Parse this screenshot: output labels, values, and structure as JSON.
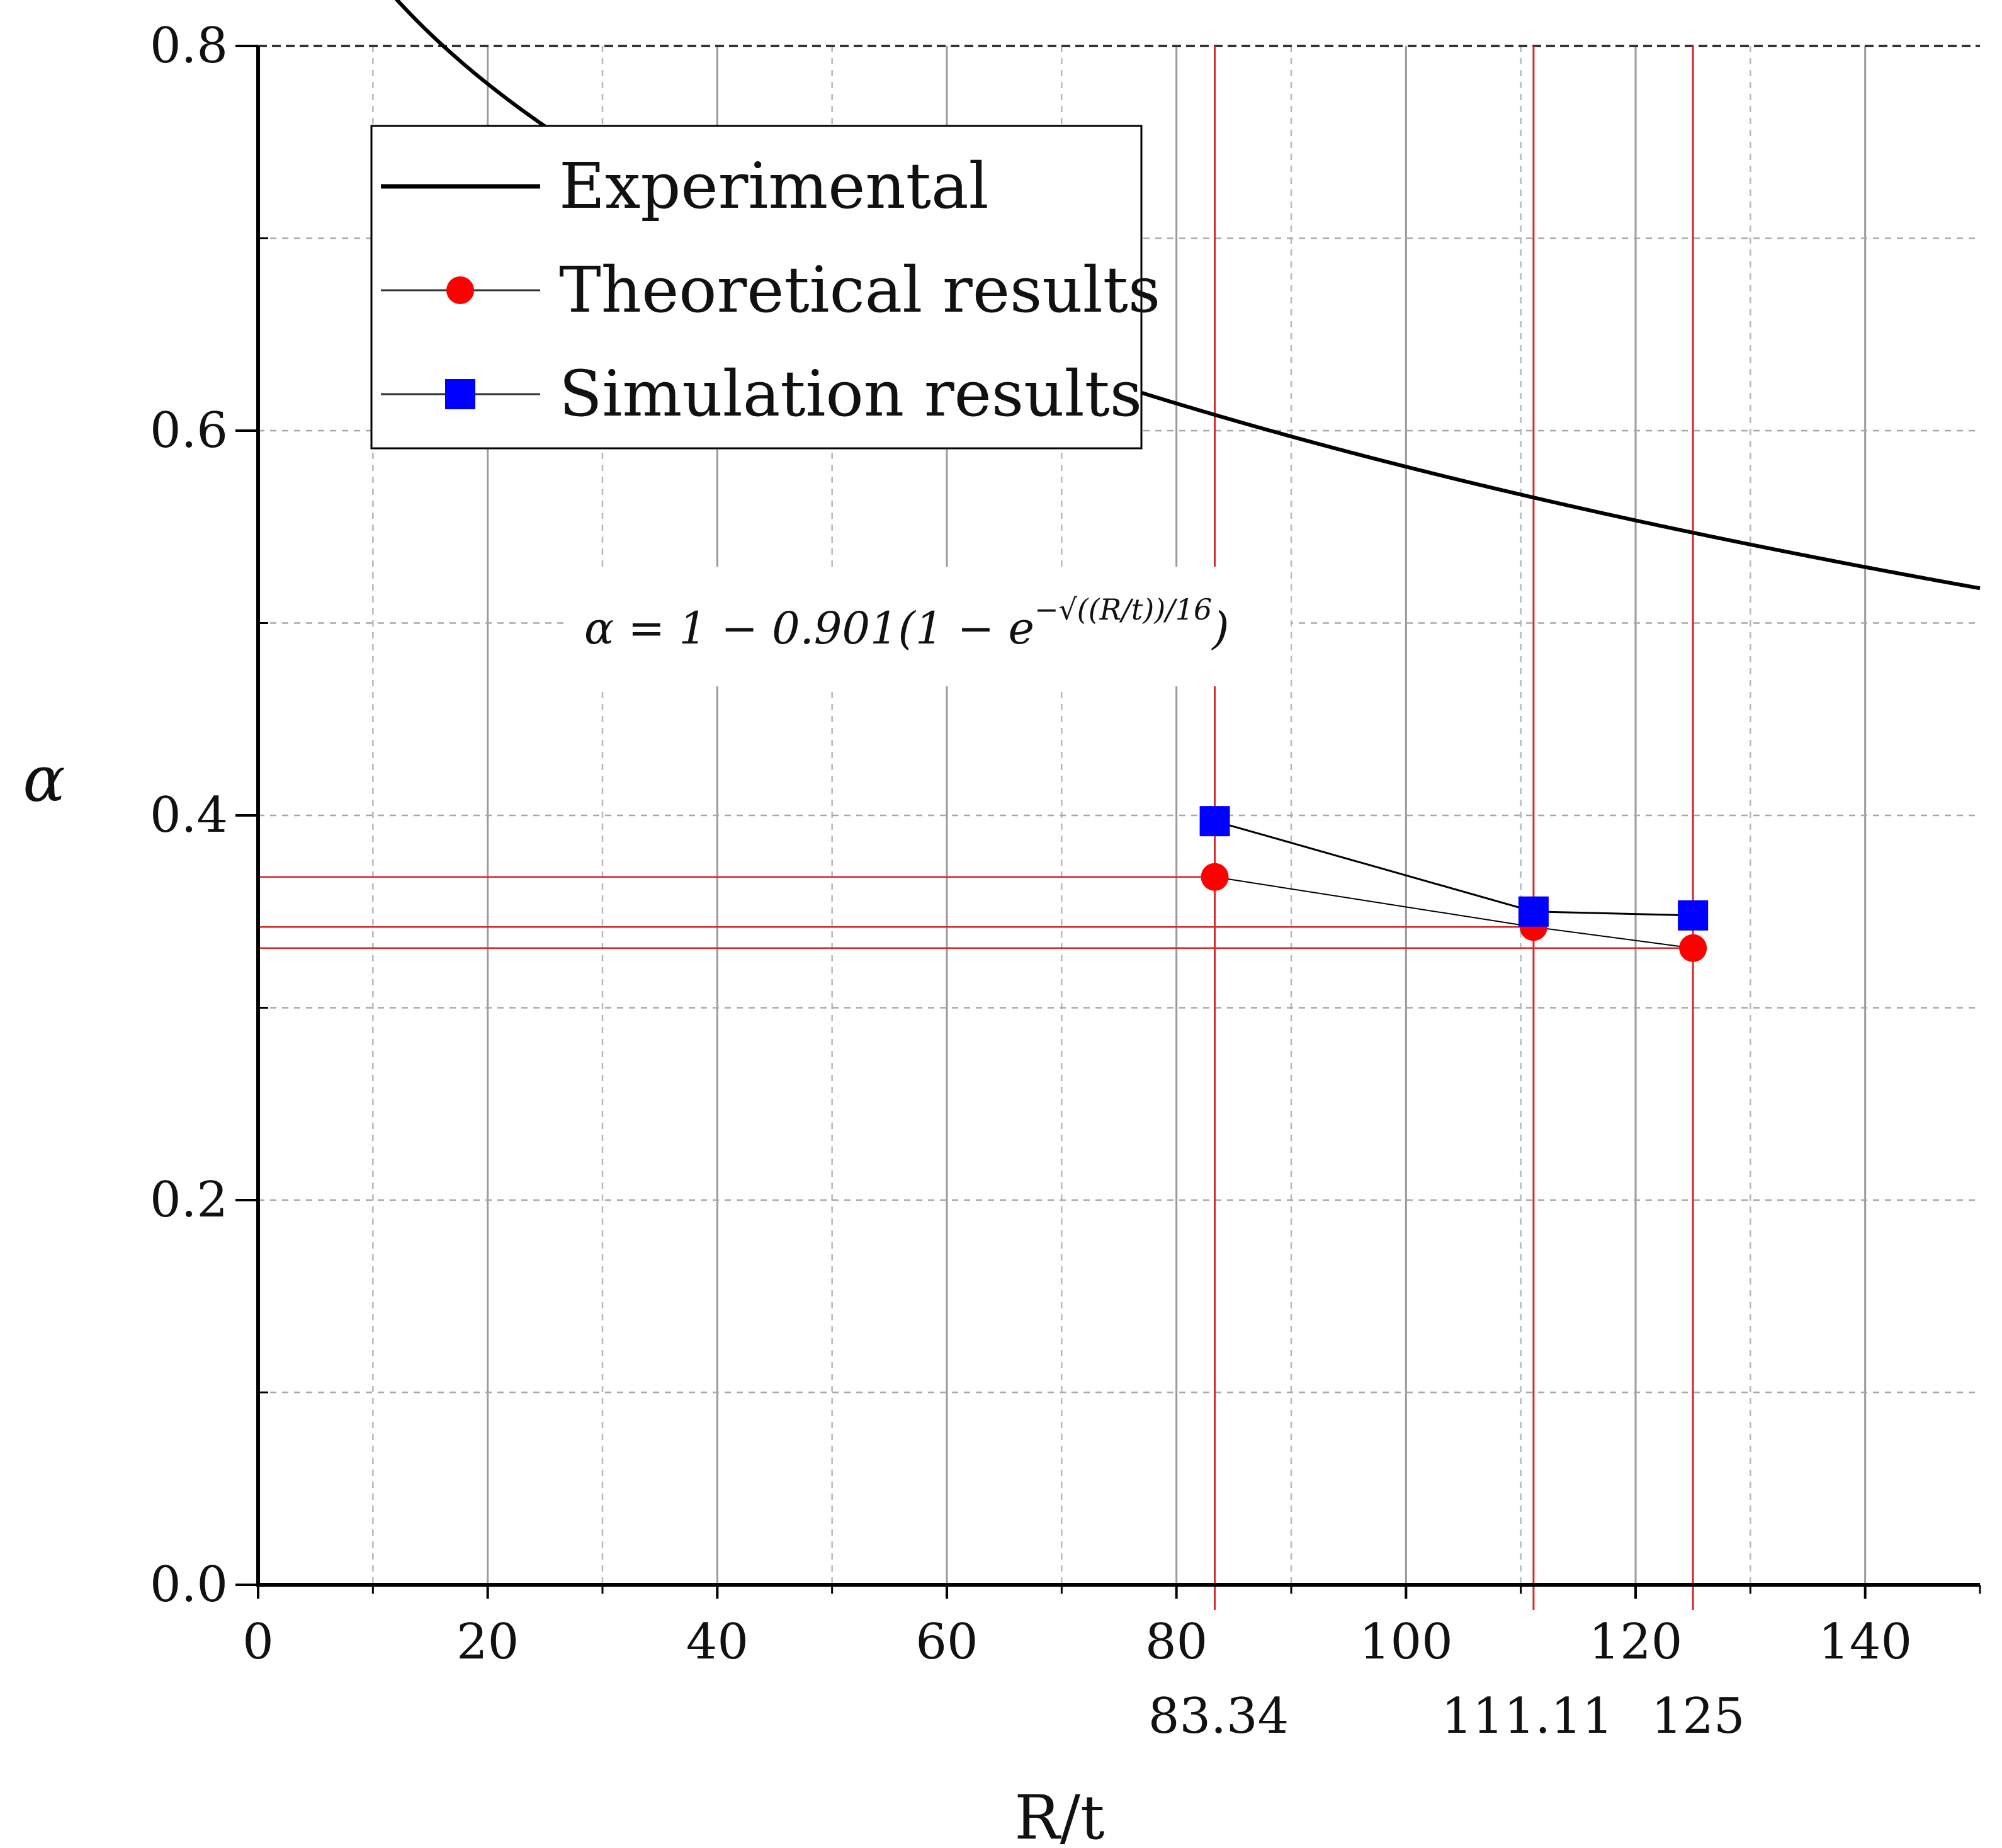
{
  "chart_data": {
    "type": "line",
    "xlabel": "R/t",
    "ylabel": "α",
    "xlim": [
      0,
      150
    ],
    "ylim": [
      0,
      0.8
    ],
    "x_ticks": [
      0,
      20,
      40,
      60,
      80,
      100,
      120,
      140
    ],
    "x_tick_labels": [
      "0",
      "20",
      "40",
      "60",
      "80",
      "100",
      "120",
      "140"
    ],
    "y_ticks": [
      0.0,
      0.2,
      0.4,
      0.6,
      0.8
    ],
    "y_tick_labels": [
      "0.0",
      "0.2",
      "0.4",
      "0.6",
      "0.8"
    ],
    "x_minor_ticks": [
      10,
      30,
      50,
      70,
      90,
      110,
      130,
      150
    ],
    "y_minor_ticks": [
      0.1,
      0.3,
      0.5,
      0.7
    ],
    "grid": true,
    "legend_position": "top-left",
    "equation": {
      "main": "α = 1 − 0.901(1 − e",
      "exponent": "−√((R/t))/16",
      "close": ")"
    },
    "reference_x": [
      83.34,
      111.11,
      125
    ],
    "reference_x_labels": [
      "83.34",
      "111.11",
      "125"
    ],
    "series": [
      {
        "name": "Experimental",
        "style": "line",
        "color": "#000000",
        "function": "alpha = 1 - 0.901*(1 - exp(-sqrt(x)/16))",
        "x_range": [
          0,
          150
        ]
      },
      {
        "name": "Theoretical results",
        "style": "line-marker-circle",
        "color": "#ff0000",
        "points": [
          {
            "x": 83.34,
            "y": 0.368
          },
          {
            "x": 111.11,
            "y": 0.342
          },
          {
            "x": 125,
            "y": 0.331
          }
        ]
      },
      {
        "name": "Simulation results",
        "style": "line-marker-square",
        "color": "#0000ff",
        "points": [
          {
            "x": 83.34,
            "y": 0.397
          },
          {
            "x": 111.11,
            "y": 0.35
          },
          {
            "x": 125,
            "y": 0.348
          }
        ]
      }
    ]
  },
  "colors": {
    "experimental": "#000000",
    "theoretical": "#ff0000",
    "simulation": "#0000ff",
    "reference_lines": "#d42a2a",
    "grid_major_x": "#9a9a9a",
    "grid_dashed": "#b8b8b8"
  }
}
